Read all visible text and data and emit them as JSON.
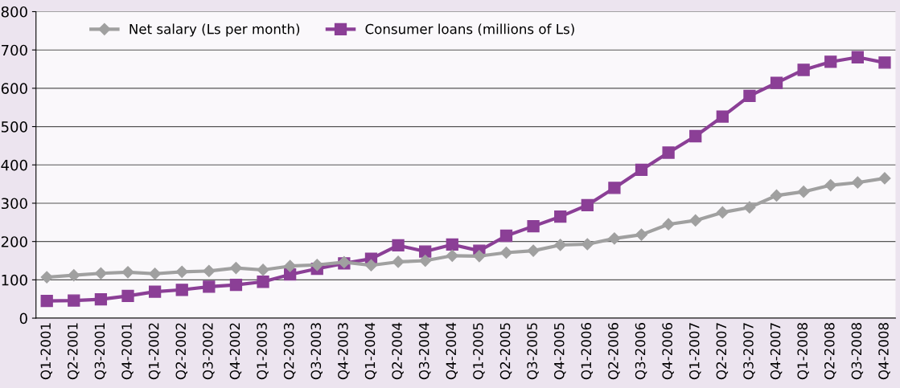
{
  "chart_data": {
    "type": "line",
    "categories": [
      "Q1-2001",
      "Q2-2001",
      "Q3-2001",
      "Q4-2001",
      "Q1-2002",
      "Q2-2002",
      "Q3-2002",
      "Q4-2002",
      "Q1-2003",
      "Q2-2003",
      "Q3-2003",
      "Q4-2003",
      "Q1-2004",
      "Q2-2004",
      "Q3-2004",
      "Q4-2004",
      "Q1-2005",
      "Q2-2005",
      "Q3-2005",
      "Q4-2005",
      "Q1-2006",
      "Q2-2006",
      "Q3-2006",
      "Q4-2006",
      "Q1-2007",
      "Q2-2007",
      "Q3-2007",
      "Q4-2007",
      "Q1-2008",
      "Q2-2008",
      "Q3-2008",
      "Q4-2008"
    ],
    "series": [
      {
        "name": "Net salary (Ls per month)",
        "color": "#a0a0a0",
        "marker": "diamond",
        "values": [
          107,
          112,
          117,
          120,
          116,
          121,
          123,
          131,
          126,
          136,
          139,
          146,
          138,
          147,
          150,
          163,
          162,
          171,
          176,
          191,
          193,
          208,
          218,
          245,
          255,
          276,
          289,
          320,
          330,
          347,
          354,
          365
        ]
      },
      {
        "name": "Consumer loans (millions of Ls)",
        "color": "#8b3f96",
        "marker": "square",
        "values": [
          45,
          46,
          49,
          58,
          69,
          74,
          82,
          87,
          95,
          114,
          129,
          143,
          155,
          190,
          174,
          192,
          176,
          215,
          240,
          265,
          295,
          340,
          387,
          432,
          475,
          526,
          580,
          614,
          648,
          669,
          681,
          667
        ]
      }
    ],
    "ylim": [
      0,
      800
    ],
    "yticks": [
      0,
      100,
      200,
      300,
      400,
      500,
      600,
      700,
      800
    ],
    "grid": "y",
    "legend": "top left",
    "line_style": "solid"
  }
}
